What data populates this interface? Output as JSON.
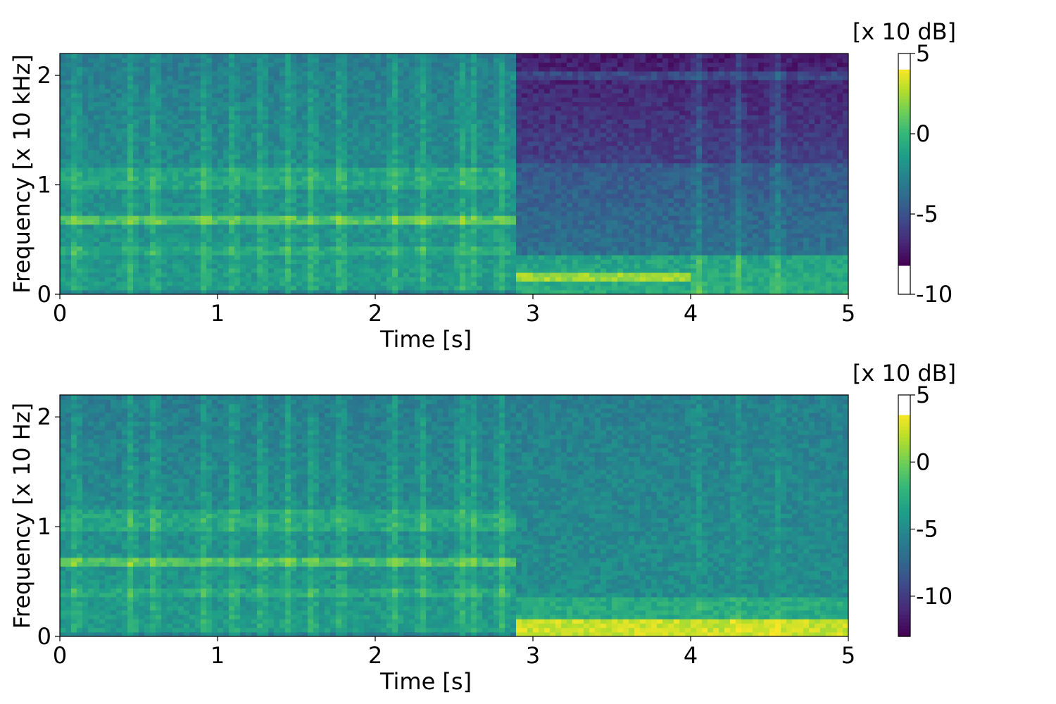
{
  "chart_data": [
    {
      "type": "heatmap",
      "title": "",
      "xlabel": "Time [s]",
      "ylabel": "Frequency [x 10 kHz]",
      "xlim": [
        0,
        5
      ],
      "ylim": [
        0,
        2.2
      ],
      "x_ticks": [
        {
          "value": 0,
          "label": "0"
        },
        {
          "value": 1,
          "label": "1"
        },
        {
          "value": 2,
          "label": "2"
        },
        {
          "value": 3,
          "label": "3"
        },
        {
          "value": 4,
          "label": "4"
        },
        {
          "value": 5,
          "label": "5"
        }
      ],
      "y_ticks": [
        {
          "value": 0,
          "label": "0"
        },
        {
          "value": 1,
          "label": "1"
        },
        {
          "value": 2,
          "label": "2"
        }
      ],
      "colormap": "viridis",
      "colorbar": {
        "unit_label": "[x 10 dB]",
        "range": [
          -10,
          5
        ],
        "colormap_range": [
          -8.2,
          4
        ],
        "ticks": [
          {
            "value": 5,
            "label": "5"
          },
          {
            "value": 0,
            "label": "0"
          },
          {
            "value": -5,
            "label": "-5"
          },
          {
            "value": -10,
            "label": "-10"
          }
        ]
      },
      "high_energy_band_khz_x10": [
        0.62,
        0.72
      ],
      "onset_time_s": 2.9
    },
    {
      "type": "heatmap",
      "title": "",
      "xlabel": "Time [s]",
      "ylabel": "Frequency [x 10 Hz]",
      "xlim": [
        0,
        5
      ],
      "ylim": [
        0,
        2.2
      ],
      "x_ticks": [
        {
          "value": 0,
          "label": "0"
        },
        {
          "value": 1,
          "label": "1"
        },
        {
          "value": 2,
          "label": "2"
        },
        {
          "value": 3,
          "label": "3"
        },
        {
          "value": 4,
          "label": "4"
        },
        {
          "value": 5,
          "label": "5"
        }
      ],
      "y_ticks": [
        {
          "value": 0,
          "label": "0"
        },
        {
          "value": 1,
          "label": "1"
        },
        {
          "value": 2,
          "label": "2"
        }
      ],
      "colormap": "viridis",
      "colorbar": {
        "unit_label": "[x 10 dB]",
        "range": [
          -13,
          5
        ],
        "colormap_range": [
          -13,
          3.5
        ],
        "ticks": [
          {
            "value": 5,
            "label": "5"
          },
          {
            "value": 0,
            "label": "0"
          },
          {
            "value": -5,
            "label": "-5"
          },
          {
            "value": -10,
            "label": "-10"
          }
        ]
      },
      "onset_time_s": 2.9
    }
  ],
  "colors": {
    "viridis": [
      "#440154",
      "#482878",
      "#3e4989",
      "#31688e",
      "#26828e",
      "#1f9e89",
      "#35b779",
      "#6ece58",
      "#b5de2b",
      "#fde725"
    ],
    "frame": "#000000"
  }
}
